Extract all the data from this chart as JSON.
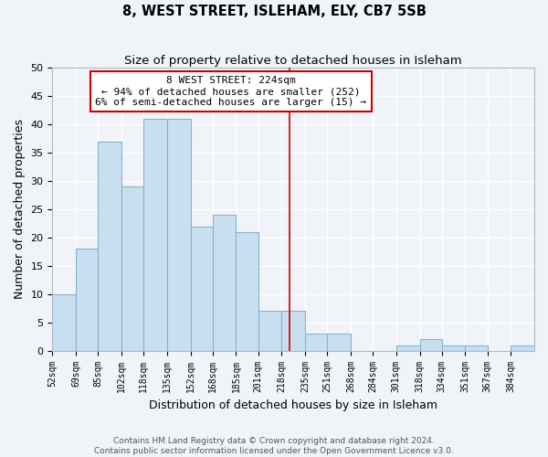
{
  "title": "8, WEST STREET, ISLEHAM, ELY, CB7 5SB",
  "subtitle": "Size of property relative to detached houses in Isleham",
  "xlabel": "Distribution of detached houses by size in Isleham",
  "ylabel": "Number of detached properties",
  "bin_labels": [
    "52sqm",
    "69sqm",
    "85sqm",
    "102sqm",
    "118sqm",
    "135sqm",
    "152sqm",
    "168sqm",
    "185sqm",
    "201sqm",
    "218sqm",
    "235sqm",
    "251sqm",
    "268sqm",
    "284sqm",
    "301sqm",
    "318sqm",
    "334sqm",
    "351sqm",
    "367sqm",
    "384sqm"
  ],
  "bin_edges": [
    52,
    69,
    85,
    102,
    118,
    135,
    152,
    168,
    185,
    201,
    218,
    235,
    251,
    268,
    284,
    301,
    318,
    334,
    351,
    367,
    384,
    401
  ],
  "counts": [
    10,
    18,
    37,
    29,
    41,
    41,
    22,
    24,
    21,
    7,
    7,
    3,
    3,
    0,
    0,
    1,
    2,
    1,
    1,
    0,
    1
  ],
  "bar_color": "#c8dff0",
  "bar_edge_color": "#8ab0cc",
  "property_line_x": 224,
  "property_line_color": "#cc0000",
  "annotation_text": "8 WEST STREET: 224sqm\n← 94% of detached houses are smaller (252)\n6% of semi-detached houses are larger (15) →",
  "annotation_box_color": "#ffffff",
  "annotation_box_edge": "#cc0000",
  "ylim": [
    0,
    50
  ],
  "yticks": [
    0,
    5,
    10,
    15,
    20,
    25,
    30,
    35,
    40,
    45,
    50
  ],
  "footer_line1": "Contains HM Land Registry data © Crown copyright and database right 2024.",
  "footer_line2": "Contains public sector information licensed under the Open Government Licence v3.0.",
  "background_color": "#f0f4f8",
  "plot_bg_color": "#f0f4f8",
  "grid_color": "#ffffff",
  "title_fontsize": 10.5,
  "subtitle_fontsize": 9.5,
  "axis_label_fontsize": 9,
  "tick_fontsize": 7,
  "footer_fontsize": 6.5,
  "annot_fontsize": 8
}
